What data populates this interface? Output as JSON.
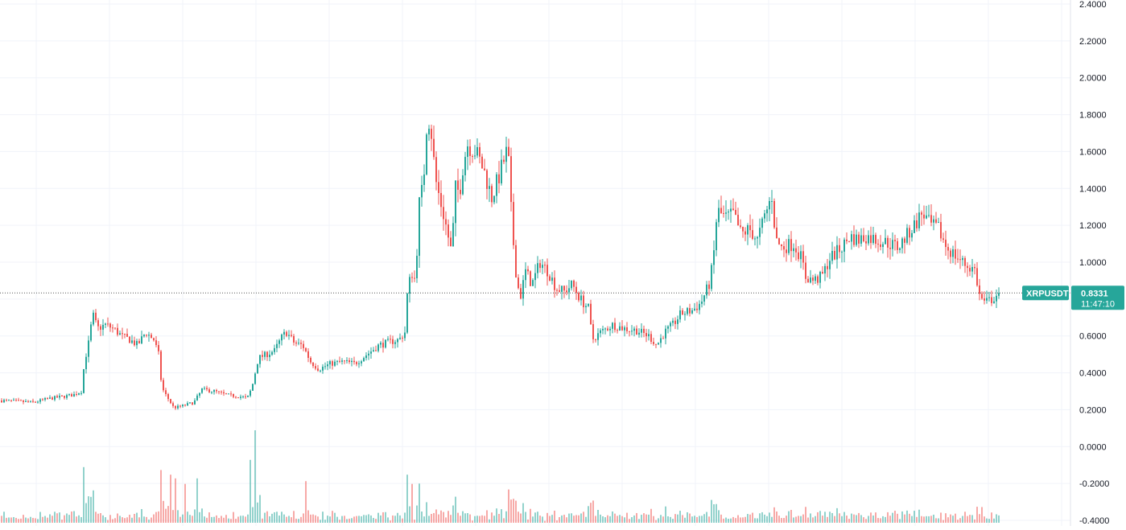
{
  "chart_data": {
    "type": "candlestick",
    "symbol": "XRPUSDT",
    "last_price": "0.8331",
    "countdown": "11:47:10",
    "colors": {
      "up": "#26a69a",
      "down": "#ef5350",
      "tag": "#26a69a",
      "grid": "#f0f3fa",
      "axis_border": "#e0e3eb"
    },
    "y_ticks": [
      "2.4000",
      "2.2000",
      "2.0000",
      "1.8000",
      "1.6000",
      "1.4000",
      "1.2000",
      "1.0000",
      "0.8000",
      "0.6000",
      "0.4000",
      "0.2000",
      "0.0000",
      "-0.2000",
      "-0.4000"
    ],
    "ylim": [
      -0.4,
      2.4
    ],
    "grid": true,
    "price_path": [
      [
        0,
        0.25
      ],
      [
        40,
        0.24
      ],
      [
        60,
        0.26
      ],
      [
        90,
        0.28
      ],
      [
        100,
        0.3
      ],
      [
        104,
        0.46
      ],
      [
        110,
        0.58
      ],
      [
        114,
        0.72
      ],
      [
        120,
        0.64
      ],
      [
        130,
        0.66
      ],
      [
        140,
        0.64
      ],
      [
        150,
        0.6
      ],
      [
        160,
        0.58
      ],
      [
        170,
        0.55
      ],
      [
        180,
        0.62
      ],
      [
        190,
        0.58
      ],
      [
        196,
        0.5
      ],
      [
        200,
        0.32
      ],
      [
        205,
        0.28
      ],
      [
        215,
        0.21
      ],
      [
        225,
        0.22
      ],
      [
        240,
        0.24
      ],
      [
        250,
        0.31
      ],
      [
        265,
        0.3
      ],
      [
        280,
        0.28
      ],
      [
        300,
        0.27
      ],
      [
        306,
        0.26
      ],
      [
        312,
        0.32
      ],
      [
        320,
        0.48
      ],
      [
        330,
        0.5
      ],
      [
        340,
        0.52
      ],
      [
        350,
        0.6
      ],
      [
        355,
        0.62
      ],
      [
        365,
        0.56
      ],
      [
        375,
        0.55
      ],
      [
        385,
        0.46
      ],
      [
        395,
        0.42
      ],
      [
        410,
        0.45
      ],
      [
        425,
        0.46
      ],
      [
        440,
        0.45
      ],
      [
        455,
        0.5
      ],
      [
        470,
        0.55
      ],
      [
        485,
        0.57
      ],
      [
        495,
        0.58
      ],
      [
        502,
        0.62
      ],
      [
        505,
        0.82
      ],
      [
        510,
        0.95
      ],
      [
        515,
        0.9
      ],
      [
        520,
        1.32
      ],
      [
        525,
        1.42
      ],
      [
        530,
        1.82
      ],
      [
        535,
        1.7
      ],
      [
        540,
        1.45
      ],
      [
        545,
        1.35
      ],
      [
        552,
        1.22
      ],
      [
        560,
        1.05
      ],
      [
        565,
        1.4
      ],
      [
        570,
        1.38
      ],
      [
        575,
        1.55
      ],
      [
        580,
        1.64
      ],
      [
        590,
        1.6
      ],
      [
        600,
        1.5
      ],
      [
        610,
        1.35
      ],
      [
        620,
        1.48
      ],
      [
        630,
        1.62
      ],
      [
        635,
        1.2
      ],
      [
        640,
        0.95
      ],
      [
        645,
        0.8
      ],
      [
        652,
        0.95
      ],
      [
        660,
        0.88
      ],
      [
        670,
        1.0
      ],
      [
        680,
        0.95
      ],
      [
        690,
        0.86
      ],
      [
        700,
        0.84
      ],
      [
        710,
        0.88
      ],
      [
        720,
        0.8
      ],
      [
        730,
        0.75
      ],
      [
        735,
        0.58
      ],
      [
        745,
        0.62
      ],
      [
        760,
        0.66
      ],
      [
        775,
        0.64
      ],
      [
        790,
        0.63
      ],
      [
        805,
        0.6
      ],
      [
        815,
        0.55
      ],
      [
        825,
        0.62
      ],
      [
        835,
        0.66
      ],
      [
        845,
        0.72
      ],
      [
        860,
        0.74
      ],
      [
        870,
        0.78
      ],
      [
        880,
        0.88
      ],
      [
        885,
        1.0
      ],
      [
        890,
        1.28
      ],
      [
        900,
        1.24
      ],
      [
        910,
        1.26
      ],
      [
        920,
        1.15
      ],
      [
        930,
        1.18
      ],
      [
        940,
        1.12
      ],
      [
        950,
        1.26
      ],
      [
        958,
        1.36
      ],
      [
        963,
        1.12
      ],
      [
        970,
        1.08
      ],
      [
        985,
        1.1
      ],
      [
        995,
        1.02
      ],
      [
        1000,
        0.92
      ],
      [
        1010,
        0.9
      ],
      [
        1020,
        0.92
      ],
      [
        1030,
        1.02
      ],
      [
        1045,
        1.08
      ],
      [
        1055,
        1.14
      ],
      [
        1065,
        1.12
      ],
      [
        1075,
        1.14
      ],
      [
        1090,
        1.12
      ],
      [
        1105,
        1.1
      ],
      [
        1115,
        1.08
      ],
      [
        1125,
        1.14
      ],
      [
        1135,
        1.2
      ],
      [
        1145,
        1.27
      ],
      [
        1155,
        1.2
      ],
      [
        1165,
        1.18
      ],
      [
        1175,
        1.08
      ],
      [
        1190,
        1.02
      ],
      [
        1200,
        0.98
      ],
      [
        1210,
        0.96
      ],
      [
        1216,
        0.82
      ],
      [
        1222,
        0.78
      ],
      [
        1232,
        0.8
      ],
      [
        1240,
        0.8331
      ]
    ],
    "volume_spikes": [
      [
        112,
        0.28
      ],
      [
        116,
        0.35
      ],
      [
        200,
        0.57
      ],
      [
        210,
        0.52
      ],
      [
        218,
        0.48
      ],
      [
        228,
        0.42
      ],
      [
        244,
        0.48
      ],
      [
        310,
        0.68
      ],
      [
        316,
        1.0
      ],
      [
        322,
        0.3
      ],
      [
        380,
        0.45
      ],
      [
        505,
        0.52
      ],
      [
        512,
        0.42
      ],
      [
        632,
        0.36
      ],
      [
        730,
        0.18
      ],
      [
        735,
        0.24
      ],
      [
        885,
        0.2
      ],
      [
        960,
        0.16
      ],
      [
        1110,
        0.13
      ],
      [
        1218,
        0.17
      ]
    ]
  }
}
